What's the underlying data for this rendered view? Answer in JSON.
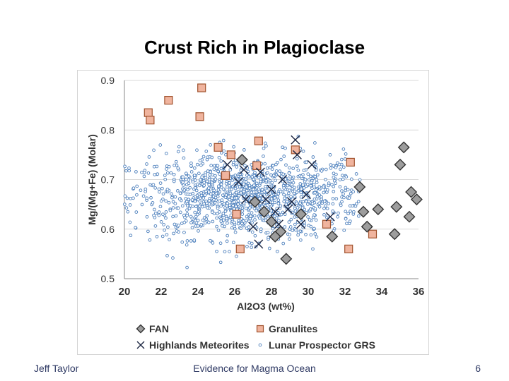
{
  "slide": {
    "title": "Crust Rich in Plagioclase",
    "footer_left": "Jeff Taylor",
    "footer_center": "Evidence for Magma Ocean",
    "footer_right": "6"
  },
  "chart_data": {
    "type": "scatter",
    "title": "",
    "xlabel": "Al2O3  (wt%)",
    "ylabel": "Mg/(Mg+Fe) (Molar)",
    "xlim": [
      20,
      36
    ],
    "ylim": [
      0.5,
      0.9
    ],
    "xticks": [
      20,
      22,
      24,
      26,
      28,
      30,
      32,
      34,
      36
    ],
    "yticks": [
      0.5,
      0.6,
      0.7,
      0.8,
      0.9
    ],
    "ytick_labels": [
      "0.5",
      "0.6",
      "0.7",
      "0.8",
      "0.9"
    ],
    "grid": "horizontal",
    "legend_position": "bottom",
    "colors": {
      "fan_fill": "#9d9d9d",
      "fan_edge": "#333333",
      "granulite_fill": "#f0b49e",
      "granulite_edge": "#a0522d",
      "meteorite": "#1a2440",
      "grs_edge": "#4f81bd",
      "grid": "#d9d9d9"
    },
    "series": [
      {
        "name": "FAN",
        "marker": "diamond",
        "x": [
          26.4,
          27.6,
          28.0,
          28.5,
          28.8,
          29.6,
          31.3,
          32.8,
          33.0,
          33.2,
          33.8,
          34.8,
          35.0,
          35.2,
          35.5,
          35.6,
          35.9,
          34.7,
          27.1,
          28.2
        ],
        "y": [
          0.74,
          0.635,
          0.615,
          0.595,
          0.54,
          0.63,
          0.585,
          0.685,
          0.635,
          0.605,
          0.64,
          0.645,
          0.73,
          0.765,
          0.625,
          0.675,
          0.66,
          0.59,
          0.655,
          0.585
        ]
      },
      {
        "name": "Granulites",
        "marker": "square",
        "x": [
          21.3,
          21.4,
          22.4,
          24.2,
          24.1,
          25.1,
          25.8,
          25.5,
          27.3,
          27.2,
          26.3,
          26.1,
          29.3,
          31.0,
          32.2,
          32.3,
          33.5
        ],
        "y": [
          0.835,
          0.82,
          0.86,
          0.885,
          0.827,
          0.765,
          0.75,
          0.708,
          0.778,
          0.728,
          0.56,
          0.63,
          0.76,
          0.61,
          0.56,
          0.735,
          0.59
        ]
      },
      {
        "name": "Highlands Meteorites",
        "marker": "x",
        "x": [
          25.6,
          26.2,
          27.0,
          27.3,
          27.7,
          28.0,
          28.2,
          28.6,
          28.9,
          29.1,
          29.4,
          29.6,
          29.9,
          30.2,
          27.4,
          26.6,
          28.4,
          31.2,
          26.5,
          29.3
        ],
        "y": [
          0.73,
          0.695,
          0.605,
          0.57,
          0.66,
          0.68,
          0.635,
          0.7,
          0.64,
          0.655,
          0.75,
          0.61,
          0.67,
          0.73,
          0.715,
          0.66,
          0.61,
          0.625,
          0.72,
          0.78
        ]
      },
      {
        "name": "Lunar Prospector GRS",
        "marker": "circle-small",
        "n": 1400,
        "x_center": 26.7,
        "x_spread": 3.2,
        "y_center": 0.665,
        "y_spread": 0.042,
        "xlim": [
          20,
          33
        ],
        "ylim": [
          0.51,
          0.8
        ]
      }
    ]
  }
}
